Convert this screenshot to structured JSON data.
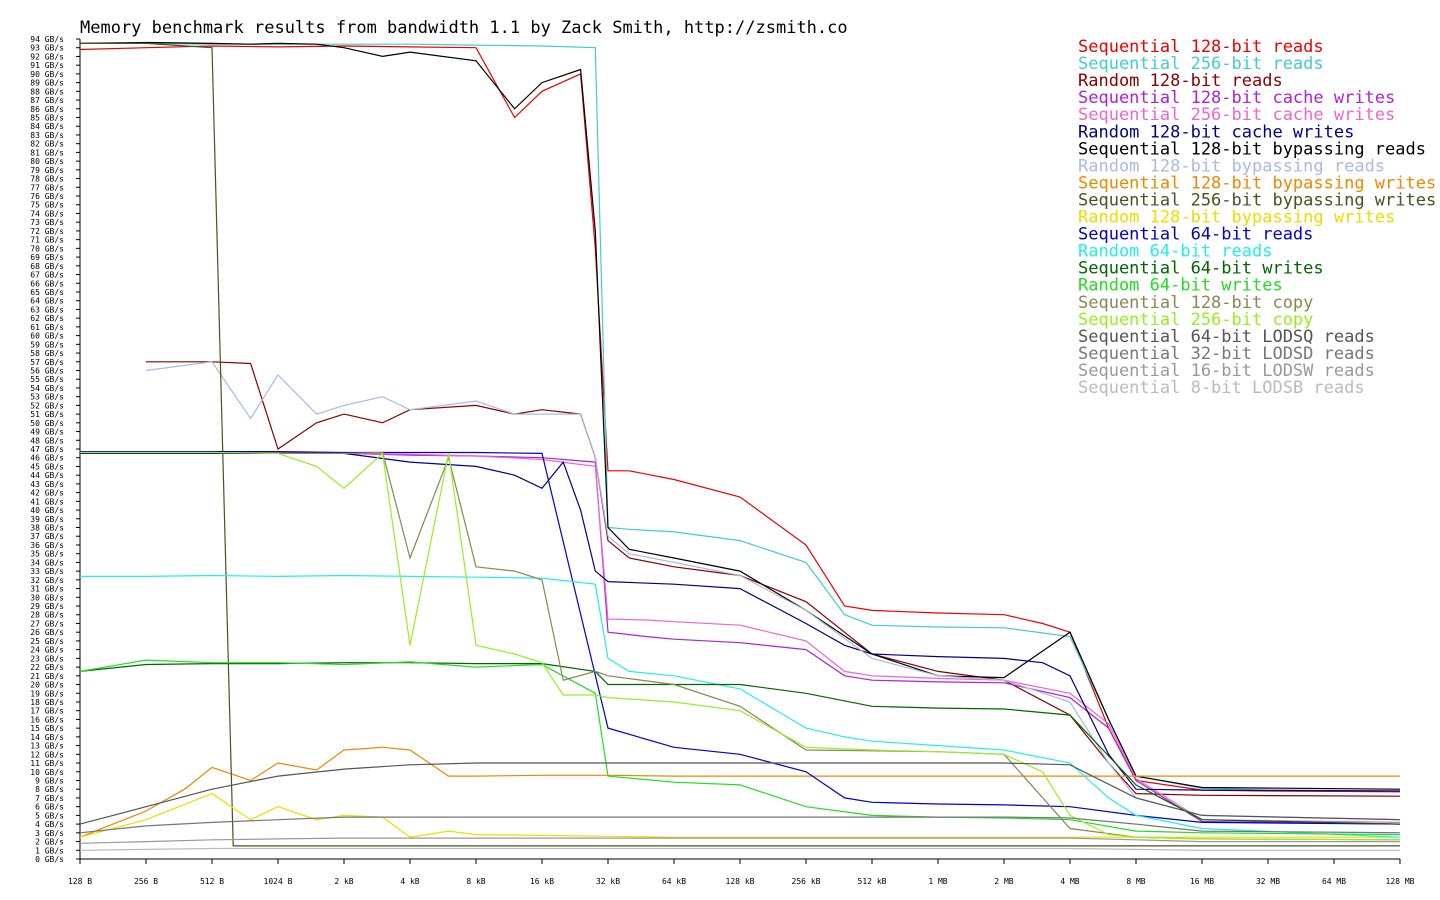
{
  "chart_data": {
    "type": "line",
    "title": "Memory benchmark results from bandwidth 1.1 by Zack Smith, http://zsmith.co",
    "xlabel": "",
    "ylabel": "",
    "ylim": [
      0,
      94
    ],
    "y_unit": "GB/s",
    "x_scale": "log2",
    "x_ticks": [
      "128 B",
      "256 B",
      "512 B",
      "1024 B",
      "2 kB",
      "4 kB",
      "8 kB",
      "16 kB",
      "32 kB",
      "64 kB",
      "128 kB",
      "256 kB",
      "512 kB",
      "1 MB",
      "2 MB",
      "4 MB",
      "8 MB",
      "16 MB",
      "32 MB",
      "64 MB",
      "128 MB"
    ],
    "x_tick_bytes": [
      128,
      256,
      512,
      1024,
      2048,
      4096,
      8192,
      16384,
      32768,
      65536,
      131072,
      262144,
      524288,
      1048576,
      2097152,
      4194304,
      8388608,
      16777216,
      33554432,
      67108864,
      134217728
    ],
    "grid": false,
    "legend_position": "top-right",
    "series": [
      {
        "name": "Sequential 128-bit reads",
        "color": "#ee0000",
        "x": [
          128,
          256,
          512,
          1024,
          2048,
          4096,
          8192,
          12288,
          16384,
          24576,
          28672,
          32768,
          40960,
          65536,
          131072,
          262144,
          393216,
          524288,
          1048576,
          2097152,
          3145728,
          4194304,
          6291456,
          8388608,
          16777216,
          33554432,
          134217728
        ],
        "y": [
          92.8,
          93.0,
          93.2,
          93.1,
          93.2,
          93.1,
          93.0,
          85.0,
          88.0,
          90.0,
          70.0,
          44.5,
          44.5,
          43.5,
          41.5,
          36.0,
          29.0,
          28.5,
          28.2,
          28.0,
          27.0,
          26.0,
          15.0,
          9.0,
          7.9,
          7.8,
          7.7
        ]
      },
      {
        "name": "Sequential 256-bit reads",
        "color": "#44cccc",
        "x": [
          128,
          256,
          512,
          1024,
          2048,
          4096,
          8192,
          16384,
          28672,
          32768,
          40960,
          65536,
          131072,
          262144,
          393216,
          524288,
          1048576,
          2097152,
          4194304,
          6291456,
          8388608,
          16777216,
          33554432,
          134217728
        ],
        "y": [
          93.5,
          93.5,
          93.4,
          93.4,
          93.4,
          93.4,
          93.3,
          93.2,
          93.0,
          38.0,
          37.8,
          37.5,
          36.5,
          34.0,
          28.0,
          26.8,
          26.6,
          26.5,
          25.5,
          16.0,
          9.5,
          8.1,
          7.9,
          7.8
        ]
      },
      {
        "name": "Random 128-bit reads",
        "color": "#880000",
        "x": [
          256,
          512,
          768,
          1024,
          1536,
          2048,
          3072,
          4096,
          8192,
          12288,
          16384,
          24576,
          28672,
          32768,
          40960,
          65536,
          131072,
          262144,
          524288,
          1048576,
          2097152,
          4194304,
          6291456,
          8388608,
          16777216,
          134217728
        ],
        "y": [
          57.0,
          57.0,
          56.8,
          47.0,
          50.0,
          51.0,
          50.0,
          51.5,
          52.0,
          51.0,
          51.5,
          51.0,
          46.0,
          36.5,
          34.5,
          33.5,
          32.5,
          29.5,
          23.5,
          21.5,
          20.5,
          16.5,
          11.0,
          7.5,
          7.3,
          7.2
        ]
      },
      {
        "name": "Sequential 128-bit cache writes",
        "color": "#aa22dd",
        "x": [
          128,
          256,
          512,
          1024,
          2048,
          4096,
          8192,
          16384,
          28672,
          32768,
          49152,
          65536,
          131072,
          262144,
          393216,
          524288,
          1048576,
          2097152,
          4194304,
          6291456,
          8388608,
          16777216,
          134217728
        ],
        "y": [
          46.5,
          46.5,
          46.5,
          46.5,
          46.5,
          46.3,
          46.2,
          46.0,
          45.5,
          26.0,
          25.5,
          25.2,
          24.8,
          24.0,
          21.0,
          20.5,
          20.3,
          20.2,
          18.5,
          15.0,
          9.0,
          4.3,
          4.0
        ]
      },
      {
        "name": "Sequential 256-bit cache writes",
        "color": "#ee66cc",
        "x": [
          128,
          256,
          512,
          1024,
          2048,
          4096,
          8192,
          16384,
          28672,
          32768,
          49152,
          65536,
          131072,
          262144,
          393216,
          524288,
          1048576,
          2097152,
          4194304,
          6291456,
          8388608,
          16777216,
          134217728
        ],
        "y": [
          46.6,
          46.6,
          46.6,
          46.6,
          46.5,
          46.4,
          46.2,
          45.8,
          45.0,
          27.5,
          27.4,
          27.2,
          26.8,
          25.0,
          21.5,
          21.0,
          20.7,
          20.5,
          19.0,
          15.5,
          9.2,
          4.5,
          4.2
        ]
      },
      {
        "name": "Random 128-bit cache writes",
        "color": "#000088",
        "x": [
          128,
          256,
          512,
          1024,
          2048,
          4096,
          8192,
          12288,
          16384,
          20480,
          24576,
          28672,
          32768,
          65536,
          131072,
          262144,
          393216,
          524288,
          1048576,
          2097152,
          3145728,
          4194304,
          6291456,
          8388608,
          16777216,
          134217728
        ],
        "y": [
          46.5,
          46.5,
          46.5,
          46.5,
          46.5,
          45.5,
          45.0,
          44.0,
          42.5,
          45.5,
          40.0,
          33.0,
          31.8,
          31.5,
          31.0,
          27.0,
          24.5,
          23.5,
          23.2,
          23.0,
          22.5,
          21.0,
          12.0,
          8.0,
          7.9,
          7.8
        ]
      },
      {
        "name": "Sequential 128-bit bypassing reads",
        "color": "#000000",
        "x": [
          128,
          256,
          512,
          768,
          1024,
          1536,
          2048,
          3072,
          4096,
          8192,
          12288,
          16384,
          24576,
          28672,
          32768,
          40960,
          65536,
          131072,
          262144,
          524288,
          1048576,
          2097152,
          4194304,
          6291456,
          8388608,
          16777216,
          134217728
        ],
        "y": [
          93.5,
          93.6,
          93.5,
          93.4,
          93.5,
          93.4,
          93.0,
          92.0,
          92.5,
          91.5,
          86.0,
          89.0,
          90.5,
          72.0,
          38.0,
          35.5,
          34.5,
          33.0,
          28.5,
          23.5,
          21.0,
          20.8,
          26.0,
          16.0,
          9.5,
          8.2,
          8.0
        ]
      },
      {
        "name": "Random 128-bit bypassing reads",
        "color": "#aabbdd",
        "x": [
          256,
          512,
          768,
          1024,
          1536,
          2048,
          3072,
          4096,
          8192,
          12288,
          16384,
          24576,
          28672,
          32768,
          40960,
          65536,
          131072,
          262144,
          524288,
          1048576,
          2097152,
          4194304,
          6291456,
          8388608,
          16777216,
          134217728
        ],
        "y": [
          56.0,
          57.0,
          50.5,
          55.5,
          51.0,
          52.0,
          53.0,
          51.5,
          52.5,
          51.0,
          51.0,
          51.0,
          46.0,
          37.0,
          35.0,
          34.0,
          32.5,
          28.5,
          23.0,
          21.0,
          20.5,
          18.0,
          11.0,
          7.0,
          5.0,
          4.5
        ]
      },
      {
        "name": "Sequential 128-bit bypassing writes",
        "color": "#ee8800",
        "x": [
          128,
          256,
          384,
          512,
          768,
          1024,
          1536,
          2048,
          3072,
          4096,
          6144,
          8192,
          16384,
          32768,
          65536,
          131072,
          262144,
          524288,
          1048576,
          2097152,
          4194304,
          8388608,
          16777216,
          33554432,
          134217728
        ],
        "y": [
          2.5,
          5.5,
          8.0,
          10.5,
          9.0,
          11.0,
          10.2,
          12.5,
          12.8,
          12.5,
          9.5,
          9.5,
          9.6,
          9.6,
          9.5,
          9.5,
          9.5,
          9.5,
          9.5,
          9.5,
          9.5,
          9.5,
          9.5,
          9.5,
          9.5
        ]
      },
      {
        "name": "Sequential 256-bit bypassing writes",
        "color": "#445522",
        "x": [
          128,
          256,
          512,
          640,
          1024,
          2048,
          4096,
          16384,
          32768,
          134217728
        ],
        "y": [
          93.5,
          93.5,
          93.0,
          1.5,
          1.5,
          1.5,
          1.5,
          1.5,
          1.5,
          1.5
        ]
      },
      {
        "name": "Random 128-bit bypassing writes",
        "color": "#eedd00",
        "x": [
          128,
          256,
          512,
          768,
          1024,
          1536,
          2048,
          3072,
          4096,
          6144,
          8192,
          16384,
          32768,
          65536,
          134217728
        ],
        "y": [
          2.5,
          4.5,
          7.5,
          4.5,
          6.0,
          4.5,
          5.0,
          4.8,
          2.5,
          3.2,
          2.8,
          2.7,
          2.6,
          2.5,
          2.5
        ]
      },
      {
        "name": "Sequential 64-bit reads",
        "color": "#0000cc",
        "x": [
          128,
          256,
          512,
          1024,
          2048,
          4096,
          8192,
          16384,
          32768,
          65536,
          131072,
          262144,
          393216,
          524288,
          1048576,
          2097152,
          4194304,
          8388608,
          16777216,
          134217728
        ],
        "y": [
          46.7,
          46.7,
          46.7,
          46.7,
          46.6,
          46.6,
          46.6,
          46.5,
          15.0,
          12.8,
          12.0,
          10.0,
          7.0,
          6.5,
          6.3,
          6.2,
          6.0,
          5.0,
          4.2,
          4.0
        ]
      },
      {
        "name": "Random 64-bit reads",
        "color": "#22eeee",
        "x": [
          128,
          256,
          512,
          1024,
          2048,
          4096,
          8192,
          16384,
          28672,
          32768,
          40960,
          65536,
          131072,
          262144,
          393216,
          524288,
          1048576,
          2097152,
          4194304,
          6291456,
          8388608,
          16777216,
          134217728
        ],
        "y": [
          32.4,
          32.4,
          32.5,
          32.4,
          32.5,
          32.4,
          32.3,
          32.2,
          31.5,
          23.0,
          21.5,
          21.0,
          19.5,
          15.0,
          14.0,
          13.5,
          13.0,
          12.5,
          11.0,
          7.0,
          5.0,
          3.5,
          2.5
        ]
      },
      {
        "name": "Sequential 64-bit writes",
        "color": "#006600",
        "x": [
          128,
          256,
          512,
          1024,
          2048,
          4096,
          8192,
          16384,
          28672,
          32768,
          65536,
          131072,
          262144,
          524288,
          1048576,
          2097152,
          4194304,
          8388608,
          16777216,
          134217728
        ],
        "y": [
          21.5,
          22.3,
          22.4,
          22.4,
          22.5,
          22.5,
          22.4,
          22.4,
          21.5,
          20.0,
          20.0,
          20.0,
          19.0,
          17.5,
          17.3,
          17.2,
          16.5,
          8.5,
          4.5,
          4.0
        ]
      },
      {
        "name": "Random 64-bit writes",
        "color": "#22dd22",
        "x": [
          128,
          256,
          512,
          1024,
          2048,
          4096,
          8192,
          16384,
          28672,
          32768,
          65536,
          131072,
          262144,
          524288,
          1048576,
          2097152,
          4194304,
          8388608,
          16777216,
          134217728
        ],
        "y": [
          21.5,
          22.8,
          22.5,
          22.5,
          22.3,
          22.6,
          22.0,
          22.3,
          19.0,
          9.5,
          8.8,
          8.5,
          6.0,
          5.0,
          4.8,
          4.7,
          4.5,
          3.2,
          3.0,
          2.8
        ]
      },
      {
        "name": "Sequential 128-bit copy",
        "color": "#888855",
        "x": [
          128,
          256,
          512,
          1024,
          2048,
          3072,
          4096,
          6144,
          8192,
          12288,
          16384,
          20480,
          28672,
          32768,
          65536,
          131072,
          262144,
          524288,
          1048576,
          2097152,
          4194304,
          8388608,
          16777216,
          134217728
        ],
        "y": [
          46.6,
          46.6,
          46.6,
          46.5,
          46.5,
          46.6,
          34.5,
          46.0,
          33.5,
          33.0,
          32.0,
          20.5,
          21.5,
          21.0,
          20.0,
          17.5,
          12.5,
          12.4,
          12.3,
          12.0,
          3.5,
          2.5,
          2.3,
          2.2
        ]
      },
      {
        "name": "Sequential 256-bit copy",
        "color": "#99ee22",
        "x": [
          128,
          256,
          512,
          1024,
          1536,
          2048,
          3072,
          4096,
          6144,
          8192,
          12288,
          16384,
          20480,
          28672,
          32768,
          65536,
          131072,
          262144,
          524288,
          1048576,
          2097152,
          3145728,
          4194304,
          6291456,
          8388608,
          16777216,
          134217728
        ],
        "y": [
          46.6,
          46.6,
          46.6,
          46.5,
          45.0,
          42.5,
          46.5,
          24.5,
          46.5,
          24.5,
          23.5,
          22.5,
          18.8,
          18.8,
          18.5,
          18.0,
          17.0,
          12.8,
          12.5,
          12.3,
          12.0,
          10.0,
          5.0,
          2.8,
          2.5,
          2.3,
          2.2
        ]
      },
      {
        "name": "Sequential 64-bit LODSQ reads",
        "color": "#555555",
        "x": [
          128,
          256,
          512,
          1024,
          2048,
          4096,
          8192,
          16384,
          32768,
          65536,
          131072,
          262144,
          524288,
          1048576,
          2097152,
          4194304,
          8388608,
          16777216,
          134217728
        ],
        "y": [
          4.0,
          6.0,
          8.0,
          9.5,
          10.3,
          10.8,
          11.0,
          11.0,
          11.0,
          11.0,
          11.0,
          11.0,
          11.0,
          11.0,
          11.0,
          10.8,
          7.0,
          5.0,
          4.5
        ]
      },
      {
        "name": "Sequential 32-bit LODSD reads",
        "color": "#777777",
        "x": [
          128,
          256,
          512,
          1024,
          2048,
          4096,
          8192,
          16384,
          32768,
          65536,
          131072,
          262144,
          524288,
          1048576,
          2097152,
          4194304,
          8388608,
          16777216,
          134217728
        ],
        "y": [
          3.0,
          3.8,
          4.2,
          4.5,
          4.8,
          4.8,
          4.8,
          4.8,
          4.8,
          4.8,
          4.8,
          4.8,
          4.8,
          4.8,
          4.8,
          4.7,
          4.0,
          3.2,
          3.0
        ]
      },
      {
        "name": "Sequential 16-bit LODSW reads",
        "color": "#999999",
        "x": [
          128,
          256,
          512,
          1024,
          2048,
          4096,
          8192,
          16384,
          32768,
          65536,
          131072,
          262144,
          524288,
          1048576,
          2097152,
          4194304,
          8388608,
          16777216,
          134217728
        ],
        "y": [
          1.8,
          2.0,
          2.2,
          2.3,
          2.4,
          2.4,
          2.4,
          2.4,
          2.4,
          2.4,
          2.4,
          2.4,
          2.4,
          2.4,
          2.4,
          2.4,
          2.2,
          2.0,
          2.0
        ]
      },
      {
        "name": "Sequential 8-bit LODSB reads",
        "color": "#bbbbbb",
        "x": [
          128,
          256,
          512,
          1024,
          2048,
          4096,
          8192,
          16384,
          32768,
          65536,
          131072,
          262144,
          524288,
          1048576,
          2097152,
          4194304,
          8388608,
          16777216,
          134217728
        ],
        "y": [
          1.0,
          1.1,
          1.2,
          1.2,
          1.2,
          1.2,
          1.2,
          1.2,
          1.2,
          1.2,
          1.2,
          1.2,
          1.2,
          1.2,
          1.2,
          1.2,
          1.1,
          1.0,
          1.0
        ]
      }
    ]
  }
}
